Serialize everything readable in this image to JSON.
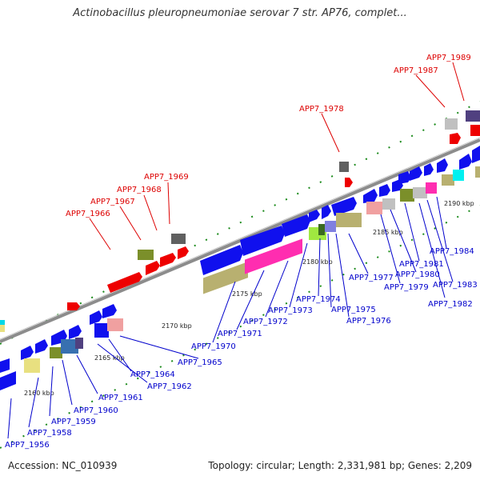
{
  "title": "Actinobacillus pleuropneumoniae serovar 7 str. AP76, complet...",
  "footer": {
    "accession": "Accession: NC_010939",
    "summary": "Topology: circular; Length: 2,331,981 bp; Genes: 2,209"
  },
  "colors": {
    "backbone": "#8c8c8c",
    "tick_minor": "#1a8a1a",
    "label_blue": "#0000cc",
    "label_red": "#dd0000"
  },
  "ruler_labels": [
    "2160 kbp",
    "2165 kbp",
    "2170 kbp",
    "2175 kbp",
    "2180 kbp",
    "2185 kbp",
    "2190 kbp"
  ],
  "labels_red": [
    "APP7_1966",
    "APP7_1967",
    "APP7_1968",
    "APP7_1969",
    "APP7_1978",
    "APP7_1987",
    "APP7_1989"
  ],
  "labels_blue": [
    "APP7_1956",
    "APP7_1958",
    "APP7_1959",
    "APP7_1960",
    "APP7_1961",
    "APP7_1962",
    "APP7_1964",
    "APP7_1965",
    "APP7_1970",
    "APP7_1971",
    "APP7_1972",
    "APP7_1973",
    "APP7_1974",
    "APP7_1975",
    "APP7_1976",
    "APP7_1977",
    "APP7_1979",
    "APP7_1980",
    "APP7_1981",
    "APP7_1982",
    "APP7_1983",
    "APP7_1984"
  ]
}
